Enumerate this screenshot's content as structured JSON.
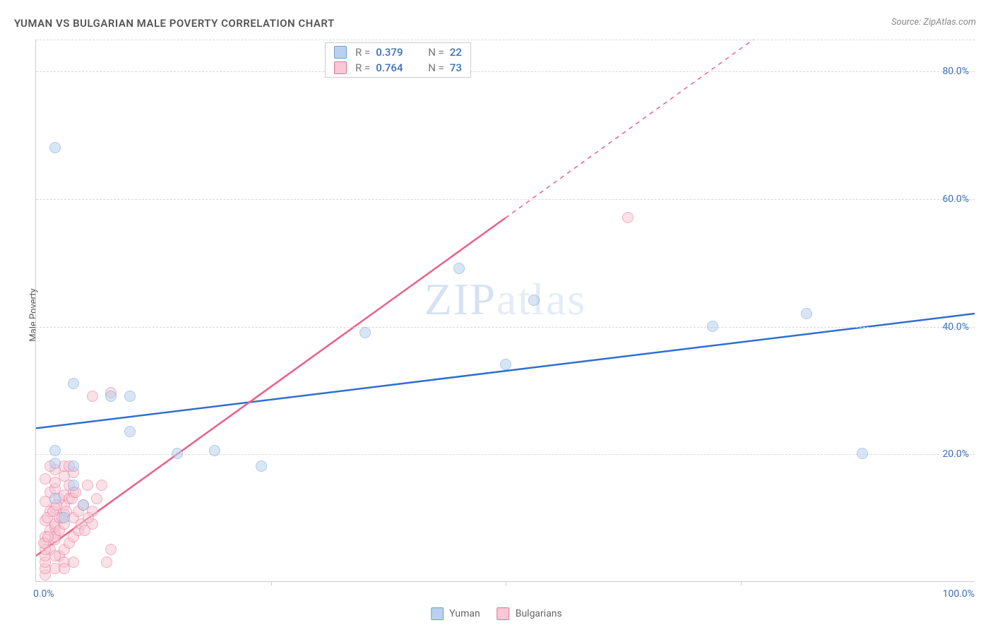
{
  "title": "YUMAN VS BULGARIAN MALE POVERTY CORRELATION CHART",
  "source": "Source: ZipAtlas.com",
  "ylabel": "Male Poverty",
  "watermark": {
    "part1": "ZIP",
    "part2": "atlas"
  },
  "colors": {
    "yuman_fill": "#b9d1ee",
    "yuman_stroke": "#6f9fd8",
    "yuman_line": "#2f6fd0",
    "bulgarian_fill": "#f7c8d5",
    "bulgarian_stroke": "#e86f95",
    "bulgarian_line": "#ec5f89",
    "axis_text": "#3b6fb6",
    "grid": "#d8d8d8",
    "title_text": "#555555",
    "background": "#ffffff"
  },
  "chart": {
    "type": "scatter",
    "xlim": [
      0,
      100
    ],
    "ylim": [
      0,
      85
    ],
    "yticks": [
      20,
      40,
      60,
      80
    ],
    "ytick_labels": [
      "20.0%",
      "40.0%",
      "60.0%",
      "80.0%"
    ],
    "xticks": [
      0,
      100
    ],
    "xtick_labels": [
      "0.0%",
      "100.0%"
    ],
    "x_minor_ticks": [
      25,
      50,
      75
    ],
    "grid_style": "dashed",
    "marker_radius": 8,
    "marker_opacity": 0.55,
    "line_width": 2.5
  },
  "series": [
    {
      "name": "Yuman",
      "color_fill": "#b9d1ee",
      "color_stroke": "#6f9fd8",
      "line_color": "#2f6fd0",
      "R": "0.379",
      "N": "22",
      "trend": {
        "x1": 0,
        "y1": 24,
        "x2": 100,
        "y2": 42,
        "dashed": false
      },
      "points": [
        [
          2,
          68
        ],
        [
          4,
          31
        ],
        [
          8,
          29
        ],
        [
          10,
          29
        ],
        [
          10,
          23.5
        ],
        [
          2,
          20.5
        ],
        [
          2,
          18.5
        ],
        [
          4,
          18
        ],
        [
          15,
          20
        ],
        [
          4,
          15
        ],
        [
          2,
          13
        ],
        [
          5,
          12
        ],
        [
          24,
          18
        ],
        [
          19,
          20.5
        ],
        [
          35,
          39
        ],
        [
          45,
          49
        ],
        [
          50,
          34
        ],
        [
          53,
          44
        ],
        [
          72,
          40
        ],
        [
          82,
          42
        ],
        [
          88,
          20
        ],
        [
          3,
          10
        ]
      ]
    },
    {
      "name": "Bulgarians",
      "color_fill": "#f7c8d5",
      "color_stroke": "#e86f95",
      "line_color": "#ec5f89",
      "R": "0.764",
      "N": "73",
      "trend": {
        "x1": 0,
        "y1": 4,
        "x2": 50,
        "y2": 57,
        "dashed_from_x": 50,
        "x3": 100,
        "y3": 110
      },
      "points": [
        [
          1,
          1
        ],
        [
          1,
          2
        ],
        [
          1,
          3
        ],
        [
          1,
          4
        ],
        [
          1.5,
          5
        ],
        [
          1,
          6
        ],
        [
          2,
          6.5
        ],
        [
          1,
          7
        ],
        [
          2,
          7.5
        ],
        [
          1.5,
          8
        ],
        [
          2,
          8.5
        ],
        [
          2,
          9
        ],
        [
          1,
          9.5
        ],
        [
          2.5,
          10
        ],
        [
          3,
          10.5
        ],
        [
          1.5,
          11
        ],
        [
          2,
          11.5
        ],
        [
          3,
          12
        ],
        [
          1,
          12.5
        ],
        [
          2.5,
          13
        ],
        [
          3,
          13.5
        ],
        [
          1.5,
          14
        ],
        [
          2,
          14.5
        ],
        [
          3.5,
          15
        ],
        [
          2,
          15.5
        ],
        [
          1,
          16
        ],
        [
          3,
          16.5
        ],
        [
          4,
          17
        ],
        [
          2,
          17.5
        ],
        [
          2.5,
          4
        ],
        [
          3,
          5
        ],
        [
          3.5,
          6
        ],
        [
          4,
          7
        ],
        [
          4.5,
          8
        ],
        [
          3,
          3
        ],
        [
          2,
          2
        ],
        [
          4,
          10
        ],
        [
          4.5,
          11
        ],
        [
          5,
          12
        ],
        [
          3.5,
          13
        ],
        [
          4,
          14
        ],
        [
          5.5,
          15
        ],
        [
          6,
          11
        ],
        [
          6,
          9
        ],
        [
          6.5,
          13
        ],
        [
          7,
          15
        ],
        [
          7.5,
          3
        ],
        [
          8,
          5
        ],
        [
          6,
          29
        ],
        [
          8,
          29.5
        ],
        [
          1.5,
          18
        ],
        [
          3,
          18
        ],
        [
          3.5,
          18
        ],
        [
          2,
          7
        ],
        [
          2.5,
          8
        ],
        [
          3,
          9
        ],
        [
          1,
          5
        ],
        [
          2,
          4
        ],
        [
          3,
          2
        ],
        [
          4,
          3
        ],
        [
          1.2,
          10
        ],
        [
          1.8,
          11
        ],
        [
          2.2,
          12
        ],
        [
          0.8,
          6
        ],
        [
          1.3,
          7
        ],
        [
          2.8,
          10
        ],
        [
          3.2,
          11
        ],
        [
          3.8,
          13
        ],
        [
          4.2,
          14
        ],
        [
          4.8,
          9
        ],
        [
          5.2,
          8
        ],
        [
          5.6,
          10
        ],
        [
          63,
          57
        ]
      ]
    }
  ],
  "legend_bottom": [
    {
      "label": "Yuman",
      "fill": "#b9d1ee",
      "stroke": "#6f9fd8"
    },
    {
      "label": "Bulgarians",
      "fill": "#f7c8d5",
      "stroke": "#e86f95"
    }
  ],
  "stats_legend_labels": {
    "R": "R =",
    "N": "N ="
  }
}
